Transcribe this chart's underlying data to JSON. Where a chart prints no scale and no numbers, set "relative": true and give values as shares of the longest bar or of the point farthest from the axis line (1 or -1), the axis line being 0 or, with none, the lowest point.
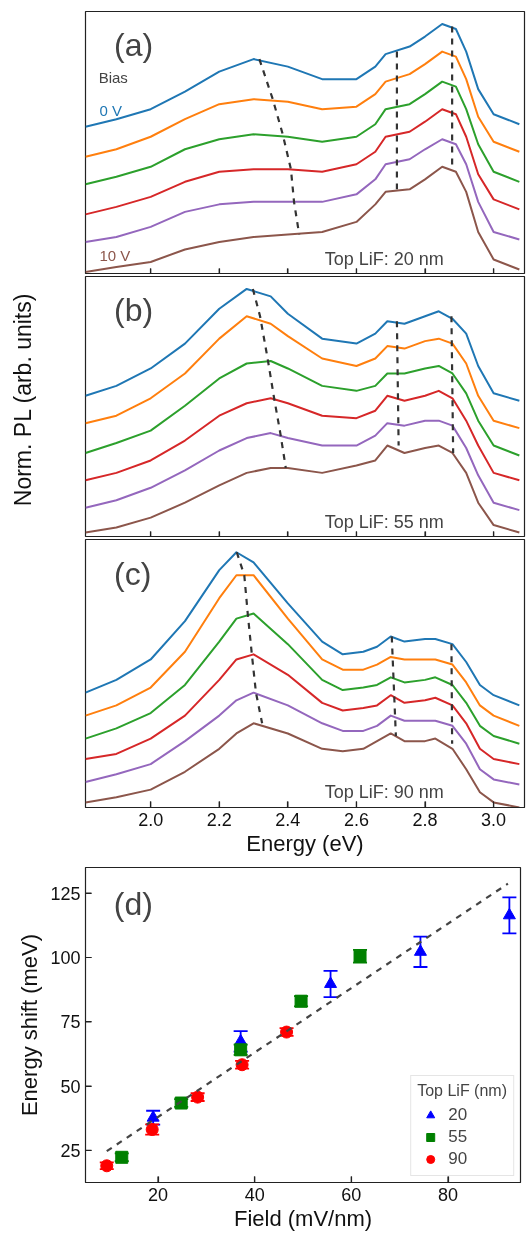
{
  "chart_data": [
    {
      "type": "line",
      "relative": true,
      "xlim": [
        1.81,
        3.09
      ],
      "xticks": [
        {
          "value": 2,
          "label": null
        },
        {
          "value": 2.2,
          "label": null
        },
        {
          "value": 2.4,
          "label": null
        },
        {
          "value": 2.6,
          "label": null
        },
        {
          "value": 2.8,
          "label": null
        },
        {
          "value": 3,
          "label": null
        }
      ],
      "tick_labels": false,
      "annotations": [
        "(a)",
        "Bias",
        "Top LiF: 20 nm"
      ],
      "x": [
        1.81,
        1.9,
        2.0,
        2.1,
        2.2,
        2.3,
        2.4,
        2.5,
        2.6,
        2.655,
        2.685,
        2.755,
        2.8,
        2.85,
        2.89,
        2.92,
        2.955,
        3.0,
        3.075
      ],
      "series": [
        {
          "name": "0 V",
          "color": "#1f77b4",
          "values": [
            0.59,
            0.62,
            0.66,
            0.73,
            0.81,
            0.86,
            0.83,
            0.78,
            0.78,
            0.83,
            0.88,
            0.91,
            0.95,
            1.0,
            0.98,
            0.89,
            0.74,
            0.64,
            0.6
          ]
        },
        {
          "color": "#ff7f0e",
          "values": [
            0.47,
            0.5,
            0.55,
            0.62,
            0.68,
            0.7,
            0.69,
            0.66,
            0.67,
            0.72,
            0.77,
            0.8,
            0.84,
            0.89,
            0.87,
            0.78,
            0.63,
            0.53,
            0.49
          ]
        },
        {
          "color": "#2ca02c",
          "values": [
            0.36,
            0.39,
            0.43,
            0.5,
            0.54,
            0.56,
            0.55,
            0.53,
            0.55,
            0.6,
            0.66,
            0.68,
            0.72,
            0.77,
            0.75,
            0.66,
            0.52,
            0.41,
            0.37
          ]
        },
        {
          "color": "#d62728",
          "values": [
            0.24,
            0.27,
            0.31,
            0.37,
            0.41,
            0.42,
            0.42,
            0.41,
            0.44,
            0.49,
            0.55,
            0.57,
            0.61,
            0.66,
            0.64,
            0.55,
            0.4,
            0.3,
            0.26
          ]
        },
        {
          "color": "#9467bd",
          "values": [
            0.13,
            0.15,
            0.19,
            0.25,
            0.28,
            0.29,
            0.29,
            0.29,
            0.32,
            0.38,
            0.44,
            0.46,
            0.5,
            0.54,
            0.52,
            0.44,
            0.29,
            0.17,
            0.14
          ]
        },
        {
          "name": "10 V",
          "color": "#8c564b",
          "values": [
            0.01,
            0.03,
            0.05,
            0.1,
            0.13,
            0.15,
            0.16,
            0.17,
            0.21,
            0.28,
            0.33,
            0.34,
            0.38,
            0.43,
            0.41,
            0.33,
            0.17,
            0.06,
            0.02
          ]
        },
        {
          "type": "line",
          "line_style": "dashed",
          "color": "#333333",
          "x": [
            2.317,
            2.356,
            2.385,
            2.409,
            2.418,
            2.433
          ],
          "values": [
            0.86,
            0.7,
            0.56,
            0.42,
            0.29,
            0.16
          ]
        },
        {
          "type": "line",
          "line_style": "dashed",
          "color": "#333333",
          "x": [
            2.718,
            2.718
          ],
          "values": [
            0.89,
            0.34
          ]
        },
        {
          "type": "line",
          "line_style": "dashed",
          "color": "#333333",
          "x": [
            2.879,
            2.879
          ],
          "values": [
            0.99,
            0.42
          ]
        }
      ]
    },
    {
      "type": "line",
      "relative": true,
      "xlim": [
        1.81,
        3.09
      ],
      "xticks": [
        {
          "value": 2,
          "label": null
        },
        {
          "value": 2.2,
          "label": null
        },
        {
          "value": 2.4,
          "label": null
        },
        {
          "value": 2.6,
          "label": null
        },
        {
          "value": 2.8,
          "label": null
        },
        {
          "value": 3,
          "label": null
        }
      ],
      "tick_labels": false,
      "ylabel": "Norm. PL (arb. units)",
      "annotations": [
        "(b)",
        "Top LiF: 55 nm"
      ],
      "x": [
        1.81,
        1.9,
        2.0,
        2.1,
        2.2,
        2.28,
        2.35,
        2.4,
        2.5,
        2.6,
        2.655,
        2.69,
        2.74,
        2.8,
        2.84,
        2.88,
        2.92,
        2.955,
        3.0,
        3.075
      ],
      "series": [
        {
          "color": "#1f77b4",
          "values": [
            0.57,
            0.61,
            0.68,
            0.78,
            0.92,
            1.0,
            0.97,
            0.9,
            0.8,
            0.78,
            0.82,
            0.87,
            0.86,
            0.89,
            0.91,
            0.88,
            0.82,
            0.69,
            0.58,
            0.55
          ]
        },
        {
          "color": "#ff7f0e",
          "values": [
            0.46,
            0.49,
            0.56,
            0.66,
            0.8,
            0.89,
            0.86,
            0.81,
            0.72,
            0.69,
            0.72,
            0.77,
            0.76,
            0.79,
            0.8,
            0.78,
            0.7,
            0.57,
            0.47,
            0.44
          ]
        },
        {
          "color": "#2ca02c",
          "values": [
            0.34,
            0.38,
            0.43,
            0.53,
            0.64,
            0.7,
            0.71,
            0.68,
            0.61,
            0.59,
            0.61,
            0.66,
            0.66,
            0.68,
            0.69,
            0.66,
            0.58,
            0.47,
            0.37,
            0.33
          ]
        },
        {
          "color": "#d62728",
          "values": [
            0.23,
            0.26,
            0.31,
            0.39,
            0.49,
            0.54,
            0.56,
            0.54,
            0.49,
            0.48,
            0.51,
            0.57,
            0.55,
            0.57,
            0.59,
            0.56,
            0.47,
            0.37,
            0.26,
            0.23
          ]
        },
        {
          "color": "#9467bd",
          "values": [
            0.12,
            0.15,
            0.2,
            0.27,
            0.35,
            0.4,
            0.42,
            0.4,
            0.37,
            0.37,
            0.41,
            0.46,
            0.45,
            0.47,
            0.47,
            0.45,
            0.36,
            0.25,
            0.14,
            0.11
          ]
        },
        {
          "color": "#8c564b",
          "values": [
            0.02,
            0.04,
            0.08,
            0.14,
            0.21,
            0.26,
            0.28,
            0.28,
            0.26,
            0.29,
            0.31,
            0.37,
            0.34,
            0.36,
            0.37,
            0.34,
            0.26,
            0.14,
            0.05,
            0.02
          ]
        },
        {
          "type": "line",
          "line_style": "dashed",
          "color": "#333333",
          "x": [
            2.298,
            2.319,
            2.341,
            2.36,
            2.378,
            2.394
          ],
          "values": [
            1.0,
            0.89,
            0.72,
            0.56,
            0.42,
            0.28
          ]
        },
        {
          "type": "line",
          "line_style": "dashed",
          "color": "#333333",
          "x": [
            2.718,
            2.723
          ],
          "values": [
            0.87,
            0.37
          ]
        },
        {
          "type": "line",
          "line_style": "dashed",
          "color": "#333333",
          "x": [
            2.877,
            2.882
          ],
          "values": [
            0.89,
            0.34
          ]
        }
      ]
    },
    {
      "type": "line",
      "relative": true,
      "xlim": [
        1.81,
        3.09
      ],
      "xticks": [
        {
          "value": 2,
          "label": "2.0"
        },
        2.2,
        2.4,
        2.6,
        2.8,
        {
          "value": 3,
          "label": "3.0"
        }
      ],
      "tick_labels": "x",
      "xlabel": "Energy (eV)",
      "annotations": [
        "(c)",
        "Top LiF: 90 nm"
      ],
      "x": [
        1.81,
        1.9,
        2.0,
        2.1,
        2.2,
        2.25,
        2.3,
        2.4,
        2.5,
        2.56,
        2.62,
        2.66,
        2.7,
        2.74,
        2.8,
        2.83,
        2.88,
        2.92,
        2.96,
        3.0,
        3.075
      ],
      "series": [
        {
          "color": "#1f77b4",
          "values": [
            0.45,
            0.5,
            0.58,
            0.73,
            0.93,
            1.0,
            0.96,
            0.8,
            0.65,
            0.6,
            0.61,
            0.63,
            0.67,
            0.65,
            0.66,
            0.66,
            0.64,
            0.57,
            0.48,
            0.44,
            0.4
          ]
        },
        {
          "color": "#ff7f0e",
          "values": [
            0.36,
            0.4,
            0.47,
            0.61,
            0.82,
            0.91,
            0.91,
            0.74,
            0.58,
            0.54,
            0.54,
            0.56,
            0.59,
            0.58,
            0.58,
            0.58,
            0.56,
            0.49,
            0.4,
            0.36,
            0.32
          ]
        },
        {
          "color": "#2ca02c",
          "values": [
            0.27,
            0.31,
            0.37,
            0.48,
            0.65,
            0.74,
            0.76,
            0.64,
            0.5,
            0.46,
            0.47,
            0.48,
            0.51,
            0.49,
            0.5,
            0.51,
            0.48,
            0.41,
            0.32,
            0.28,
            0.25
          ]
        },
        {
          "color": "#d62728",
          "values": [
            0.19,
            0.21,
            0.27,
            0.36,
            0.5,
            0.58,
            0.6,
            0.52,
            0.41,
            0.38,
            0.39,
            0.4,
            0.44,
            0.41,
            0.42,
            0.43,
            0.4,
            0.33,
            0.23,
            0.19,
            0.17
          ]
        },
        {
          "color": "#9467bd",
          "values": [
            0.1,
            0.13,
            0.17,
            0.26,
            0.36,
            0.42,
            0.45,
            0.4,
            0.33,
            0.3,
            0.3,
            0.32,
            0.36,
            0.34,
            0.34,
            0.34,
            0.32,
            0.25,
            0.15,
            0.11,
            0.09
          ]
        },
        {
          "color": "#8c564b",
          "values": [
            0.02,
            0.04,
            0.07,
            0.14,
            0.23,
            0.29,
            0.33,
            0.29,
            0.23,
            0.22,
            0.23,
            0.26,
            0.29,
            0.26,
            0.26,
            0.27,
            0.23,
            0.15,
            0.06,
            0.02,
            0.0
          ]
        },
        {
          "type": "line",
          "line_style": "dashed",
          "color": "#333333",
          "x": [
            2.251,
            2.273,
            2.283,
            2.295,
            2.307,
            2.325
          ],
          "values": [
            1.0,
            0.91,
            0.76,
            0.6,
            0.45,
            0.33
          ]
        },
        {
          "type": "line",
          "line_style": "dashed",
          "color": "#333333",
          "x": [
            2.703,
            2.715
          ],
          "values": [
            0.67,
            0.28
          ]
        },
        {
          "type": "line",
          "line_style": "dashed",
          "color": "#333333",
          "x": [
            2.877,
            2.879
          ],
          "values": [
            0.64,
            0.25
          ]
        }
      ]
    },
    {
      "type": "scatter",
      "xlabel": "Field (mV/nm)",
      "ylabel": "Energy shift (meV)",
      "xlim": [
        5,
        95
      ],
      "ylim": [
        12.5,
        135
      ],
      "xticks": [
        20,
        40,
        60,
        80
      ],
      "yticks": [
        25,
        50,
        75,
        100,
        125
      ],
      "legend": "bottom right",
      "legend_title": "Top LiF (nm)",
      "annotations": [
        "(d)"
      ],
      "series": [
        {
          "name": "20",
          "color": "#0000ff",
          "marker": "triangle",
          "x": [
            19.0,
            37.1,
            55.7,
            74.3,
            92.7
          ],
          "values": [
            37.7,
            67.4,
            89.7,
            102.2,
            116.4
          ],
          "errors": [
            2.7,
            4.0,
            5.1,
            5.9,
            7.0
          ]
        },
        {
          "name": "55",
          "color": "#008000",
          "marker": "square",
          "x": [
            12.5,
            24.8,
            37.1,
            49.6,
            61.8
          ],
          "values": [
            22.3,
            43.4,
            64.1,
            83.0,
            100.5
          ],
          "errors": [
            1.5,
            1.5,
            2.0,
            2.0,
            2.5
          ]
        },
        {
          "name": "90",
          "color": "#ff0000",
          "marker": "circle",
          "x": [
            9.4,
            18.8,
            28.2,
            37.4,
            46.6
          ],
          "values": [
            19.0,
            33.1,
            45.7,
            58.3,
            71.0
          ],
          "errors": [
            1.3,
            2.0,
            1.5,
            1.5,
            1.5
          ]
        },
        {
          "type": "line",
          "line_style": "dashed",
          "color": "#444444",
          "x": [
            9.4,
            92.4
          ],
          "values": [
            24.7,
            128.7
          ]
        }
      ]
    }
  ]
}
